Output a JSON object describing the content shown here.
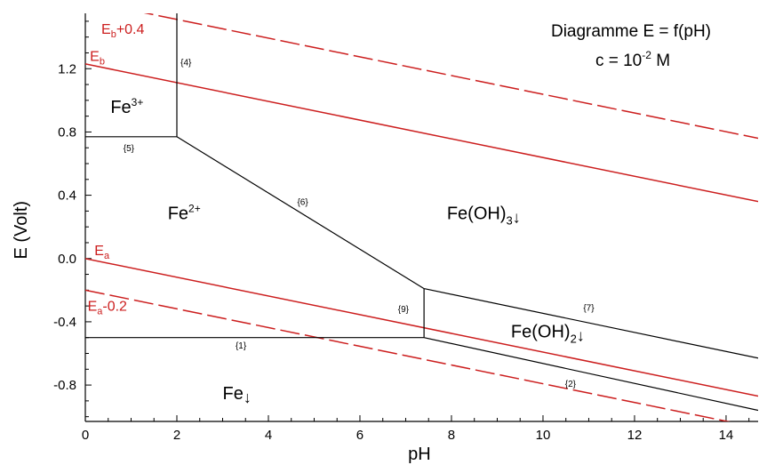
{
  "chart_data": {
    "type": "line",
    "title": "Diagramme E = f(pH)",
    "subtitle": {
      "prefix": "c = 10",
      "exponent": "-2",
      "suffix": " M"
    },
    "xlabel": "pH",
    "ylabel": "E (Volt)",
    "xlim": [
      0,
      14.7
    ],
    "ylim": [
      -1.03,
      1.55
    ],
    "xticks": [
      "0",
      "2",
      "4",
      "6",
      "8",
      "10",
      "12",
      "14"
    ],
    "yticks": [
      "-0.8",
      "-0.4",
      "0.0",
      "0.4",
      "0.8",
      "1.2"
    ],
    "xtick_values": [
      0,
      2,
      4,
      6,
      8,
      10,
      12,
      14
    ],
    "ytick_values": [
      -0.8,
      -0.4,
      0.0,
      0.4,
      0.8,
      1.2
    ],
    "grid": false,
    "boundaries": [
      {
        "label": "{1}",
        "points": [
          [
            0,
            -0.5
          ],
          [
            7.4,
            -0.5
          ]
        ]
      },
      {
        "label": "{2}",
        "points": [
          [
            7.4,
            -0.5
          ],
          [
            14.7,
            -0.96
          ]
        ]
      },
      {
        "label": "{4}",
        "points": [
          [
            2.0,
            0.77
          ],
          [
            2.0,
            1.55
          ]
        ]
      },
      {
        "label": "{5}",
        "points": [
          [
            0,
            0.77
          ],
          [
            2.0,
            0.77
          ]
        ]
      },
      {
        "label": "{6}",
        "points": [
          [
            2.0,
            0.77
          ],
          [
            7.4,
            -0.19
          ]
        ]
      },
      {
        "label": "{7}",
        "points": [
          [
            7.4,
            -0.19
          ],
          [
            14.7,
            -0.63
          ]
        ]
      },
      {
        "label": "{9}",
        "points": [
          [
            7.4,
            -0.19
          ],
          [
            7.4,
            -0.5
          ]
        ]
      }
    ],
    "boundary_label_positions": [
      {
        "label": "{1}",
        "x": 3.4,
        "y": -0.57
      },
      {
        "label": "{2}",
        "x": 10.6,
        "y": -0.81
      },
      {
        "label": "{4}",
        "x": 2.2,
        "y": 1.22
      },
      {
        "label": "{5}",
        "x": 0.95,
        "y": 0.68
      },
      {
        "label": "{6}",
        "x": 4.75,
        "y": 0.34
      },
      {
        "label": "{7}",
        "x": 11.0,
        "y": -0.33
      },
      {
        "label": "{9}",
        "x": 6.95,
        "y": -0.34
      }
    ],
    "reference_lines": [
      {
        "name": "Eb+0.4",
        "style": "dashed",
        "points": [
          [
            0,
            1.63
          ],
          [
            14.7,
            0.76
          ]
        ]
      },
      {
        "name": "Eb",
        "style": "solid",
        "points": [
          [
            0,
            1.23
          ],
          [
            14.7,
            0.36
          ]
        ]
      },
      {
        "name": "Ea",
        "style": "solid",
        "points": [
          [
            0,
            0.0
          ],
          [
            14.7,
            -0.87
          ]
        ]
      },
      {
        "name": "Ea-0.2",
        "style": "dashed",
        "points": [
          [
            0,
            -0.2
          ],
          [
            14.7,
            -1.07
          ]
        ]
      }
    ],
    "reference_labels": [
      {
        "main": "E",
        "sub": "b",
        "rest": "+0.4",
        "x": 0.35,
        "y": 1.42
      },
      {
        "main": "E",
        "sub": "b",
        "rest": "",
        "x": 0.1,
        "y": 1.25
      },
      {
        "main": "E",
        "sub": "a",
        "rest": "",
        "x": 0.2,
        "y": 0.02
      },
      {
        "main": "E",
        "sub": "a",
        "rest": "-0.2",
        "x": 0.05,
        "y": -0.33
      }
    ],
    "species": [
      {
        "name": "Fe",
        "sup": "3+",
        "sub": "",
        "arrow": false,
        "x": 0.55,
        "y": 0.92
      },
      {
        "name": "Fe",
        "sup": "2+",
        "sub": "",
        "arrow": false,
        "x": 1.8,
        "y": 0.25
      },
      {
        "name": "Fe(OH)",
        "sup": "",
        "sub": "3",
        "arrow": true,
        "x": 7.9,
        "y": 0.25
      },
      {
        "name": "Fe(OH)",
        "sup": "",
        "sub": "2",
        "arrow": true,
        "x": 9.3,
        "y": -0.5
      },
      {
        "name": "Fe",
        "sup": "",
        "sub": "",
        "arrow": true,
        "x": 3.0,
        "y": -0.89
      }
    ],
    "colors": {
      "boundary": "#000000",
      "reference": "#cc1e1e",
      "reference_text": "#cc1e1e"
    }
  }
}
